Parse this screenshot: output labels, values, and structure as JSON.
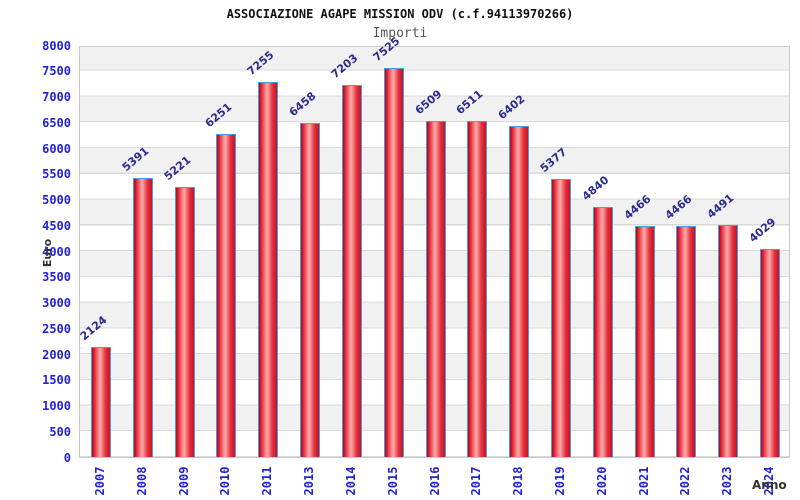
{
  "chart_data": {
    "type": "bar",
    "title": "ASSOCIAZIONE AGAPE MISSION ODV (c.f.94113970266)",
    "subtitle": "Importi",
    "xlabel": "Anno",
    "ylabel": "Euro",
    "categories": [
      "2007",
      "2008",
      "2009",
      "2010",
      "2011",
      "2013",
      "2014",
      "2015",
      "2016",
      "2017",
      "2018",
      "2019",
      "2020",
      "2021",
      "2022",
      "2023",
      "2024"
    ],
    "values": [
      2124,
      5391,
      5221,
      6251,
      7255,
      6458,
      7203,
      7525,
      6509,
      6511,
      6402,
      5377,
      4840,
      4466,
      4466,
      4491,
      4029
    ],
    "ylim": [
      0,
      8000
    ],
    "ytick_step": 500,
    "grid": true,
    "legend": "none",
    "colors": {
      "bar_fill": "#e31f30",
      "bar_fill_highlight": "#fdaaaa",
      "bar_border": "#4a9be0",
      "value_label": "#2b2b8f",
      "tick_label": "#2121d6",
      "title": "#111111",
      "subtitle": "#555555",
      "axis_title": "#333333",
      "band_gray": "#f1f1f1",
      "gridline": "#d9d9d9"
    }
  }
}
